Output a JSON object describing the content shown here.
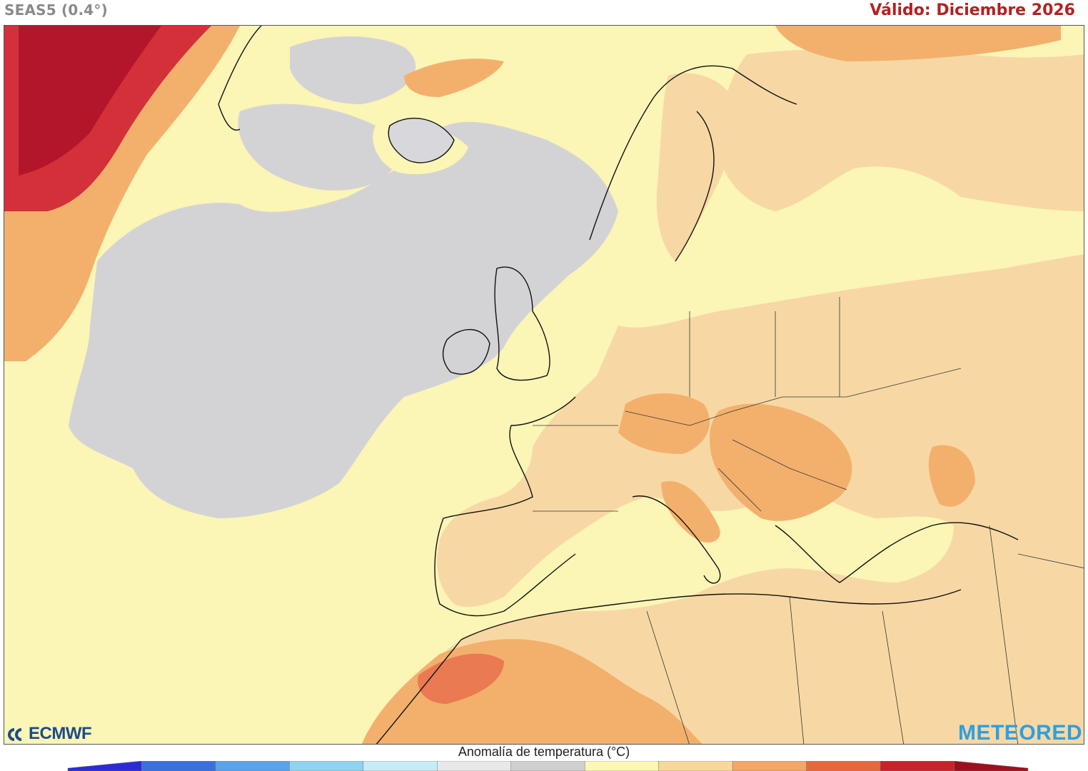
{
  "header": {
    "model": "SEAS5 (0.4°)",
    "valid": "Válido: Diciembre 2026"
  },
  "logos": {
    "ecmwf": "ECMWF",
    "meteored": "METEORED"
  },
  "legend": {
    "title": "Anomalía de temperatura (°C)",
    "colors": [
      "#2b2bd6",
      "#3b6fe0",
      "#5aa3ea",
      "#8fd3f0",
      "#c6ecf7",
      "#e8e8e8",
      "#d0d0d0",
      "#fdf7b4",
      "#f8d79a",
      "#f2a766",
      "#e8683e",
      "#c8222a",
      "#9e0f1e"
    ]
  },
  "map": {
    "colors": {
      "neutral": "#d3d3d6",
      "slight": "#fbf5b6",
      "warm1": "#f7d8a4",
      "warm2": "#f3b06c",
      "warm3": "#ea7a52",
      "hot": "#d4303a",
      "veryhot": "#b3162a"
    }
  }
}
